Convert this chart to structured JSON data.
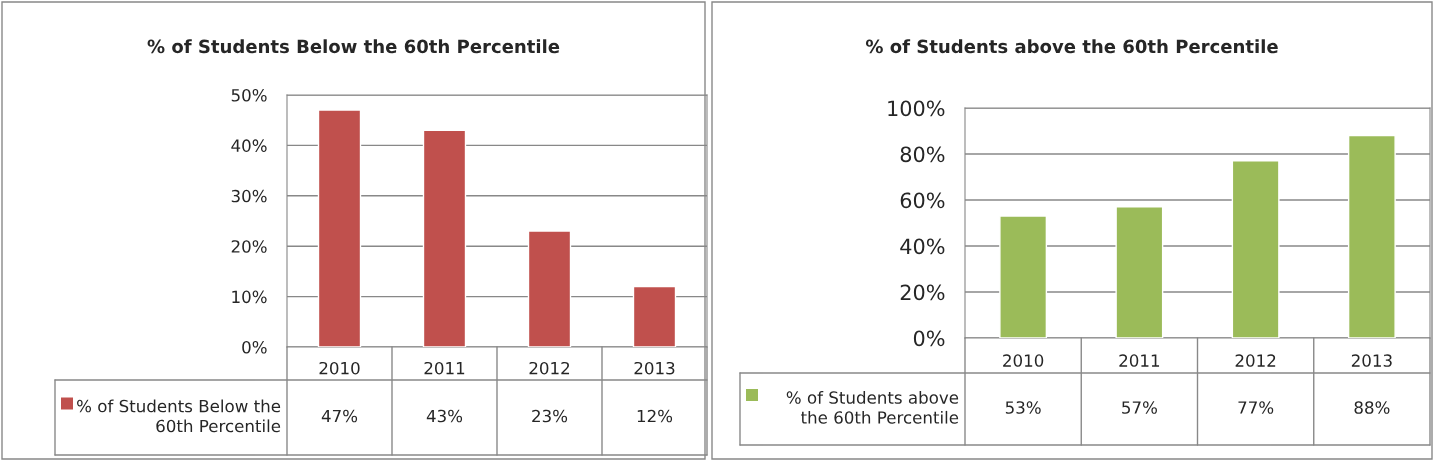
{
  "chart_data": [
    {
      "type": "bar",
      "title": "% of Students Below the 60th Percentile",
      "categories": [
        "2010",
        "2011",
        "2012",
        "2013"
      ],
      "series": [
        {
          "name": "% of Students Below the 60th Percentile",
          "color": "#c0504d",
          "values": [
            47,
            43,
            23,
            12
          ],
          "value_labels": [
            "47%",
            "43%",
            "23%",
            "12%"
          ]
        }
      ],
      "ylim": [
        0,
        50
      ],
      "yticks": [
        {
          "value": 0,
          "label": "0%"
        },
        {
          "value": 10,
          "label": "10%"
        },
        {
          "value": 20,
          "label": "20%"
        },
        {
          "value": 30,
          "label": "30%"
        },
        {
          "value": 40,
          "label": "40%"
        },
        {
          "value": 50,
          "label": "50%"
        }
      ],
      "grid": "y",
      "legend": "bottom"
    },
    {
      "type": "bar",
      "title": "% of Students above the 60th Percentile",
      "categories": [
        "2010",
        "2011",
        "2012",
        "2013"
      ],
      "series": [
        {
          "name": "% of Students above the 60th Percentile",
          "color": "#9bbb59",
          "values": [
            53,
            57,
            77,
            88
          ],
          "value_labels": [
            "53%",
            "57%",
            "77%",
            "88%"
          ]
        }
      ],
      "ylim": [
        0,
        100
      ],
      "yticks": [
        {
          "value": 0,
          "label": "0%"
        },
        {
          "value": 20,
          "label": "20%"
        },
        {
          "value": 40,
          "label": "40%"
        },
        {
          "value": 60,
          "label": "60%"
        },
        {
          "value": 80,
          "label": "80%"
        },
        {
          "value": 100,
          "label": "100%"
        }
      ],
      "grid": "y",
      "legend": "bottom"
    }
  ]
}
